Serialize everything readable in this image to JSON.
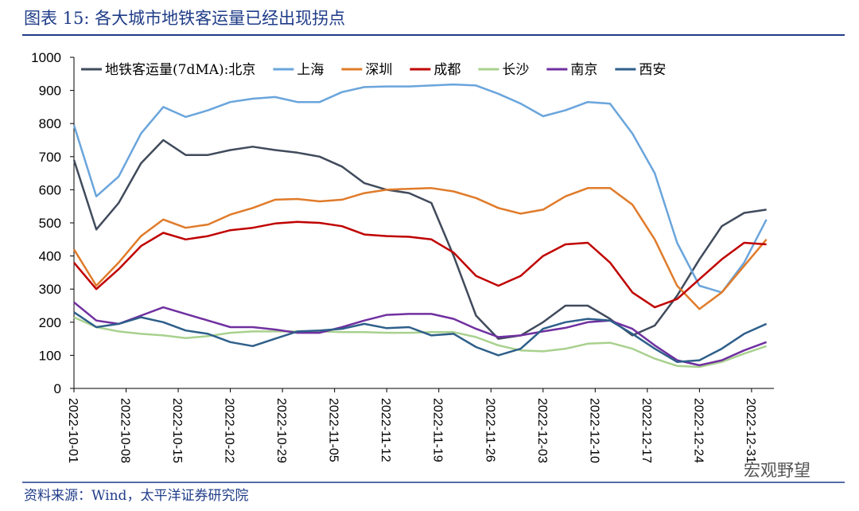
{
  "chart_data": {
    "type": "line",
    "title": "图表 15:  各大城市地铁客运量已经出现拐点",
    "source": "资料来源：Wind，太平洋证券研究院",
    "watermark": "宏观野望",
    "x": [
      "2022-10-01",
      "2022-10-04",
      "2022-10-07",
      "2022-10-10",
      "2022-10-13",
      "2022-10-16",
      "2022-10-19",
      "2022-10-22",
      "2022-10-25",
      "2022-10-28",
      "2022-10-31",
      "2022-11-03",
      "2022-11-06",
      "2022-11-09",
      "2022-11-12",
      "2022-11-15",
      "2022-11-18",
      "2022-11-21",
      "2022-11-24",
      "2022-11-27",
      "2022-11-30",
      "2022-12-03",
      "2022-12-06",
      "2022-12-09",
      "2022-12-12",
      "2022-12-15",
      "2022-12-18",
      "2022-12-21",
      "2022-12-24",
      "2022-12-27",
      "2022-12-30",
      "2023-01-02"
    ],
    "xlim": [
      "2022-10-01",
      "2023-01-03"
    ],
    "xticks": [
      "2022-10-01",
      "2022-10-08",
      "2022-10-15",
      "2022-10-22",
      "2022-10-29",
      "2022-11-05",
      "2022-11-12",
      "2022-11-19",
      "2022-11-26",
      "2022-12-03",
      "2022-12-10",
      "2022-12-17",
      "2022-12-24",
      "2022-12-31"
    ],
    "ylim": [
      0,
      1000
    ],
    "yticks": [
      0,
      100,
      200,
      300,
      400,
      500,
      600,
      700,
      800,
      900,
      1000
    ],
    "legend": "top",
    "series": [
      {
        "name": "地铁客运量(7dMA):北京",
        "color": "#404b5c",
        "values": [
          690,
          480,
          560,
          680,
          750,
          705,
          705,
          720,
          730,
          720,
          712,
          700,
          670,
          620,
          600,
          590,
          560,
          400,
          220,
          150,
          160,
          200,
          250,
          250,
          210,
          160,
          190,
          280,
          390,
          490,
          530,
          540
        ]
      },
      {
        "name": "上海",
        "color": "#6aa5dc",
        "values": [
          795,
          580,
          640,
          770,
          850,
          820,
          840,
          865,
          875,
          880,
          865,
          865,
          895,
          910,
          912,
          912,
          915,
          918,
          915,
          890,
          860,
          822,
          840,
          865,
          860,
          770,
          650,
          440,
          310,
          290,
          380,
          510
        ]
      },
      {
        "name": "深圳",
        "color": "#e07b2a",
        "values": [
          420,
          310,
          380,
          460,
          510,
          485,
          495,
          525,
          545,
          570,
          572,
          565,
          570,
          590,
          600,
          603,
          605,
          595,
          575,
          545,
          528,
          540,
          580,
          605,
          605,
          555,
          450,
          310,
          240,
          290,
          370,
          450
        ]
      },
      {
        "name": "成都",
        "color": "#c00000",
        "values": [
          380,
          300,
          360,
          430,
          470,
          450,
          460,
          478,
          485,
          498,
          503,
          500,
          490,
          465,
          460,
          458,
          450,
          410,
          340,
          310,
          340,
          400,
          435,
          440,
          380,
          290,
          245,
          270,
          330,
          390,
          440,
          435
        ]
      },
      {
        "name": "长沙",
        "color": "#a9d18e",
        "values": [
          215,
          185,
          172,
          165,
          160,
          152,
          158,
          168,
          172,
          172,
          172,
          172,
          170,
          170,
          168,
          168,
          170,
          170,
          155,
          130,
          115,
          112,
          120,
          135,
          138,
          120,
          90,
          68,
          65,
          80,
          105,
          128
        ]
      },
      {
        "name": "南京",
        "color": "#7030a0",
        "values": [
          260,
          205,
          195,
          220,
          245,
          225,
          205,
          185,
          185,
          178,
          168,
          168,
          185,
          205,
          222,
          225,
          225,
          210,
          180,
          155,
          160,
          172,
          183,
          200,
          205,
          180,
          130,
          85,
          70,
          85,
          115,
          140
        ]
      },
      {
        "name": "西安",
        "color": "#2e5f8a",
        "values": [
          230,
          185,
          195,
          215,
          200,
          175,
          165,
          140,
          128,
          150,
          172,
          175,
          180,
          195,
          182,
          185,
          160,
          165,
          125,
          100,
          120,
          180,
          200,
          210,
          205,
          165,
          120,
          80,
          85,
          120,
          165,
          195
        ]
      }
    ]
  }
}
